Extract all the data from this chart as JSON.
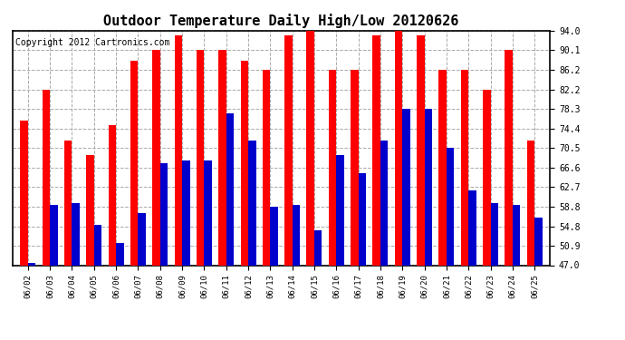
{
  "title": "Outdoor Temperature Daily High/Low 20120626",
  "copyright": "Copyright 2012 Cartronics.com",
  "dates": [
    "06/02",
    "06/03",
    "06/04",
    "06/05",
    "06/06",
    "06/07",
    "06/08",
    "06/09",
    "06/10",
    "06/11",
    "06/12",
    "06/13",
    "06/14",
    "06/15",
    "06/16",
    "06/17",
    "06/18",
    "06/19",
    "06/20",
    "06/21",
    "06/22",
    "06/23",
    "06/24",
    "06/25"
  ],
  "highs": [
    76.0,
    82.2,
    72.0,
    69.0,
    75.0,
    88.0,
    90.1,
    93.0,
    90.1,
    90.1,
    88.0,
    86.2,
    93.0,
    93.9,
    86.2,
    86.2,
    93.0,
    94.0,
    93.0,
    86.2,
    86.2,
    82.2,
    90.1,
    72.0
  ],
  "lows": [
    47.5,
    59.0,
    59.5,
    55.0,
    51.5,
    57.5,
    67.5,
    68.0,
    68.0,
    77.5,
    72.0,
    58.8,
    59.0,
    54.0,
    69.0,
    65.5,
    72.0,
    78.3,
    78.3,
    70.5,
    62.0,
    59.5,
    59.0,
    56.5
  ],
  "high_color": "#ff0000",
  "low_color": "#0000cc",
  "bg_color": "#ffffff",
  "grid_color": "#aaaaaa",
  "ylim": [
    47.0,
    94.0
  ],
  "yticks": [
    47.0,
    50.9,
    54.8,
    58.8,
    62.7,
    66.6,
    70.5,
    74.4,
    78.3,
    82.2,
    86.2,
    90.1,
    94.0
  ],
  "title_fontsize": 11,
  "copyright_fontsize": 7,
  "bar_width": 0.35
}
